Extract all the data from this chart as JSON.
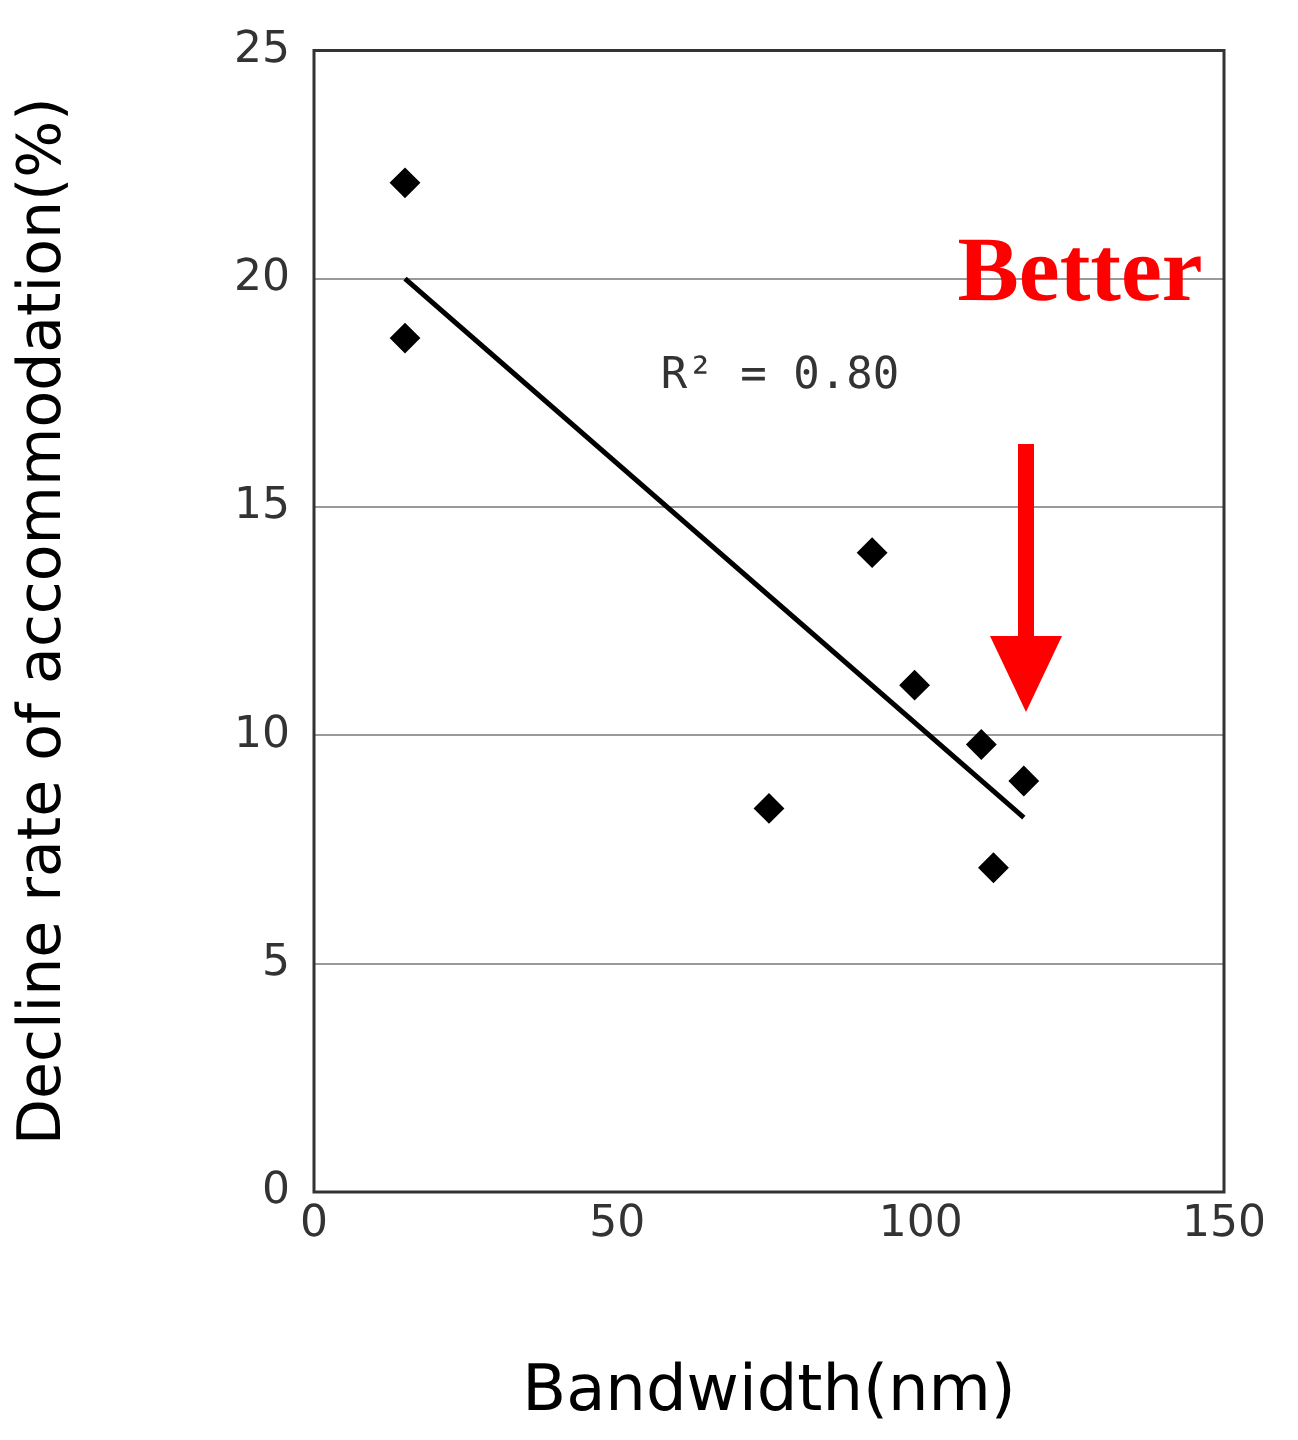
{
  "chart_data": {
    "type": "scatter",
    "xlabel": "Bandwidth(nm)",
    "ylabel": "Decline rate of accommodation(%)",
    "xlim": [
      0,
      150
    ],
    "xticks": [
      0,
      50,
      100,
      150
    ],
    "ylim": [
      0,
      25
    ],
    "yticks": [
      0,
      5,
      10,
      15,
      20,
      25
    ],
    "grid": "y",
    "legend": false,
    "marker": "diamond",
    "series": [
      {
        "type": "scatter",
        "color": "#000000",
        "x": [
          15,
          15,
          75,
          92,
          99,
          110,
          112,
          117
        ],
        "values": [
          22.1,
          18.7,
          8.4,
          14.0,
          11.1,
          9.8,
          7.1,
          9.0
        ]
      },
      {
        "type": "line",
        "color": "#000000",
        "marker": "none",
        "x": [
          15,
          117
        ],
        "values": [
          20.0,
          8.2
        ]
      }
    ],
    "annotations": [
      "R² = 0.80",
      "Better"
    ]
  }
}
